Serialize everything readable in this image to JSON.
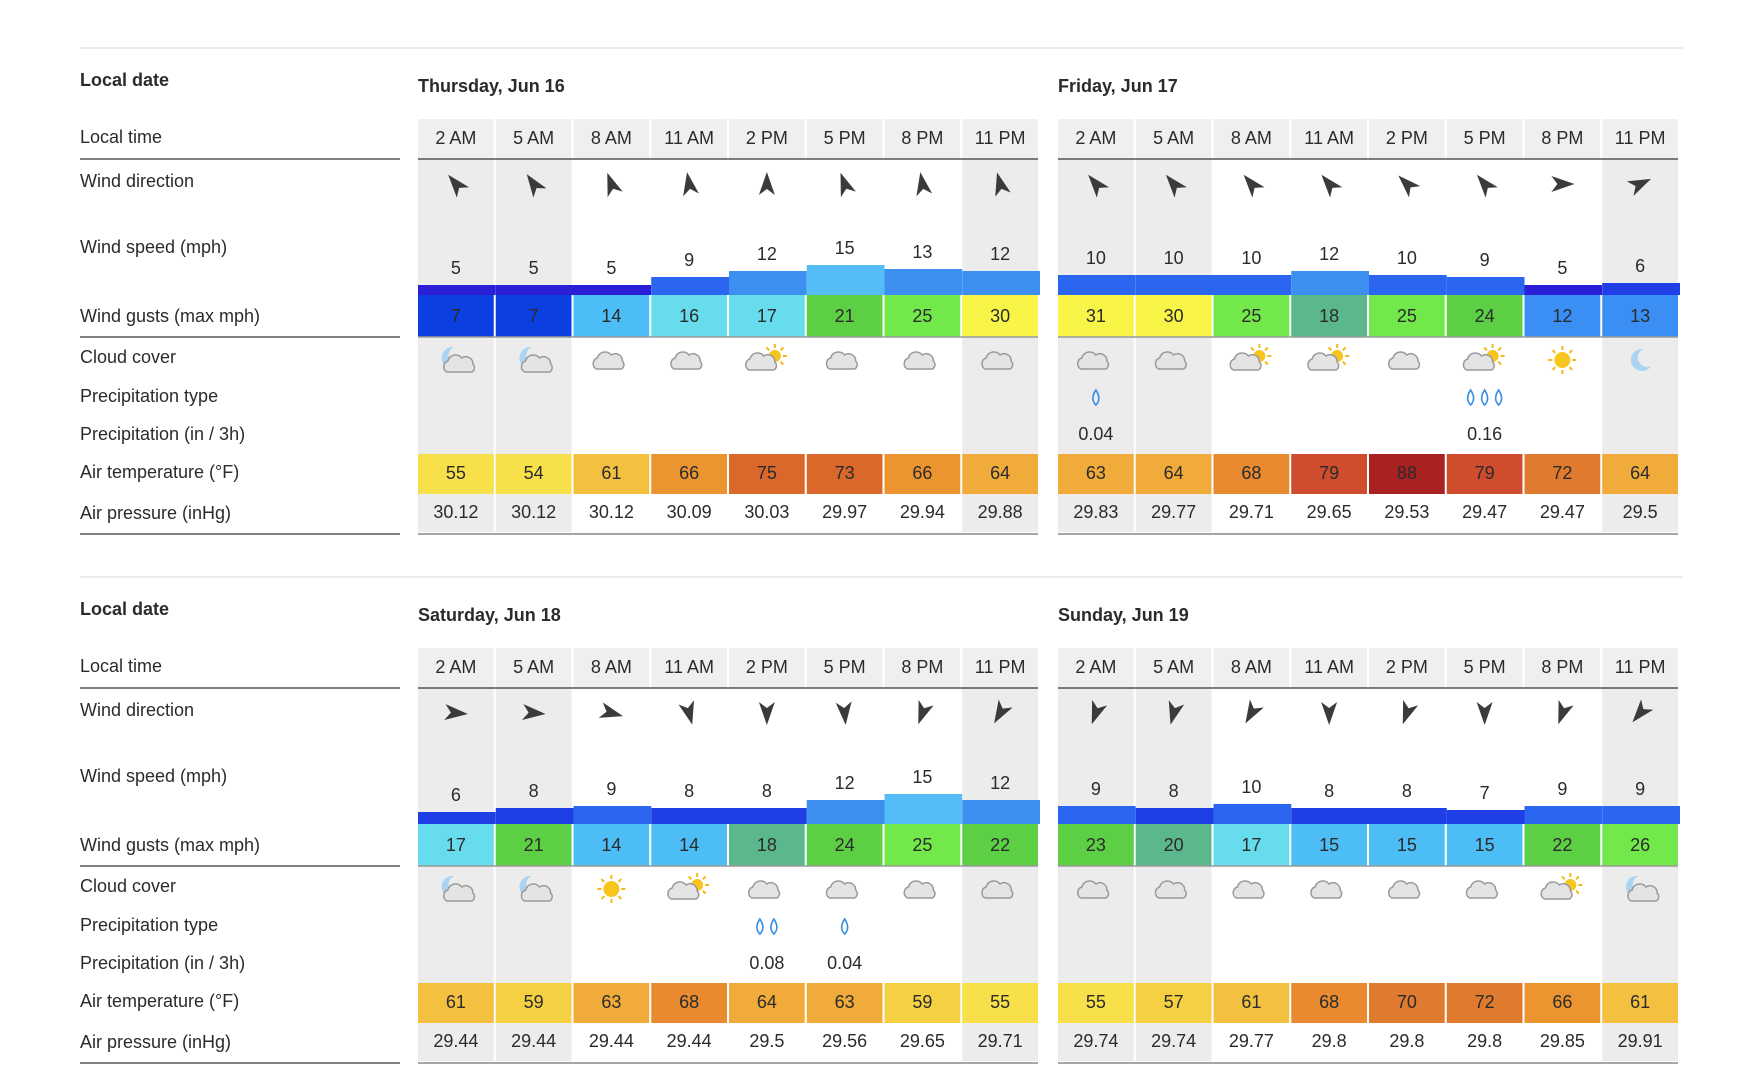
{
  "blocks": [
    {
      "date_label": "Local date",
      "row_labels": [
        "Local time",
        "Wind direction",
        "Wind speed (mph)",
        "Wind gusts (max mph)",
        "Cloud cover",
        "Precipitation type",
        "Precipitation (in / 3h)",
        "Air temperature (°F)",
        "Air pressure (inHg)"
      ],
      "days": [
        {
          "title": "Thursday, Jun 16",
          "times": [
            "2 AM",
            "5 AM",
            "8 AM",
            "11 AM",
            "2 PM",
            "5 PM",
            "8 PM",
            "11 PM"
          ],
          "wind_direction": [
            -40,
            -35,
            -20,
            -10,
            0,
            -20,
            -10,
            -15
          ],
          "wind_speed": [
            5,
            5,
            5,
            9,
            12,
            15,
            13,
            12
          ],
          "wind_gusts": [
            7,
            7,
            14,
            16,
            17,
            21,
            25,
            30
          ],
          "cloud_cover": [
            "moon-cloud",
            "moon-cloud",
            "cloud",
            "cloud",
            "sun-cloud",
            "cloud",
            "cloud",
            "cloud"
          ],
          "precipitation_drops": [
            null,
            null,
            null,
            null,
            null,
            null,
            null,
            null
          ],
          "precipitation": [
            null,
            null,
            null,
            null,
            null,
            null,
            null,
            null
          ],
          "temperature": [
            55,
            54,
            61,
            66,
            75,
            73,
            66,
            64
          ],
          "pressure": [
            30.12,
            30.12,
            30.12,
            30.09,
            30.03,
            29.97,
            29.94,
            29.88
          ]
        },
        {
          "title": "Friday, Jun 17",
          "times": [
            "2 AM",
            "5 AM",
            "8 AM",
            "11 AM",
            "2 PM",
            "5 PM",
            "8 PM",
            "11 PM"
          ],
          "wind_direction": [
            -40,
            -40,
            -40,
            -40,
            -45,
            -40,
            90,
            65
          ],
          "wind_speed": [
            10,
            10,
            10,
            12,
            10,
            9,
            5,
            6
          ],
          "wind_gusts": [
            31,
            30,
            25,
            18,
            25,
            24,
            12,
            13
          ],
          "cloud_cover": [
            "cloud",
            "cloud",
            "sun-cloud",
            "sun-cloud",
            "cloud",
            "sun-cloud",
            "sun",
            "moon"
          ],
          "precipitation_drops": [
            1,
            null,
            null,
            null,
            null,
            3,
            null,
            null
          ],
          "precipitation": [
            0.04,
            null,
            null,
            null,
            null,
            0.16,
            null,
            null
          ],
          "temperature": [
            63,
            64,
            68,
            79,
            88,
            79,
            72,
            64
          ],
          "pressure": [
            29.83,
            29.77,
            29.71,
            29.65,
            29.53,
            29.47,
            29.47,
            29.5
          ]
        }
      ]
    },
    {
      "date_label": "Local date",
      "row_labels": [
        "Local time",
        "Wind direction",
        "Wind speed (mph)",
        "Wind gusts (max mph)",
        "Cloud cover",
        "Precipitation type",
        "Precipitation (in / 3h)",
        "Air temperature (°F)",
        "Air pressure (inHg)"
      ],
      "days": [
        {
          "title": "Saturday, Jun 18",
          "times": [
            "2 AM",
            "5 AM",
            "8 AM",
            "11 AM",
            "2 PM",
            "5 PM",
            "8 PM",
            "11 PM"
          ],
          "wind_direction": [
            95,
            95,
            105,
            165,
            180,
            175,
            200,
            210
          ],
          "wind_speed": [
            6,
            8,
            9,
            8,
            8,
            12,
            15,
            12
          ],
          "wind_gusts": [
            17,
            21,
            14,
            14,
            18,
            24,
            25,
            22
          ],
          "cloud_cover": [
            "moon-cloud",
            "moon-cloud",
            "sun",
            "sun-cloud",
            "cloud",
            "cloud",
            "cloud",
            "cloud"
          ],
          "precipitation_drops": [
            null,
            null,
            null,
            null,
            2,
            1,
            null,
            null
          ],
          "precipitation": [
            null,
            null,
            null,
            null,
            0.08,
            0.04,
            null,
            null
          ],
          "temperature": [
            61,
            59,
            63,
            68,
            64,
            63,
            59,
            55
          ],
          "pressure": [
            29.44,
            29.44,
            29.44,
            29.44,
            29.5,
            29.56,
            29.65,
            29.71
          ]
        },
        {
          "title": "Sunday, Jun 19",
          "times": [
            "2 AM",
            "5 AM",
            "8 AM",
            "11 AM",
            "2 PM",
            "5 PM",
            "8 PM",
            "11 PM"
          ],
          "wind_direction": [
            200,
            195,
            210,
            180,
            200,
            180,
            200,
            220
          ],
          "wind_speed": [
            9,
            8,
            10,
            8,
            8,
            7,
            9,
            9
          ],
          "wind_gusts": [
            23,
            20,
            17,
            15,
            15,
            15,
            22,
            26
          ],
          "cloud_cover": [
            "cloud",
            "cloud",
            "cloud",
            "cloud",
            "cloud",
            "cloud",
            "sun-cloud",
            "moon-cloud"
          ],
          "precipitation_drops": [
            null,
            null,
            null,
            null,
            null,
            null,
            null,
            null
          ],
          "precipitation": [
            null,
            null,
            null,
            null,
            null,
            null,
            null,
            null
          ],
          "temperature": [
            55,
            57,
            61,
            68,
            70,
            72,
            66,
            61
          ],
          "pressure": [
            29.74,
            29.74,
            29.77,
            29.8,
            29.8,
            29.8,
            29.85,
            29.91
          ]
        }
      ]
    }
  ]
}
